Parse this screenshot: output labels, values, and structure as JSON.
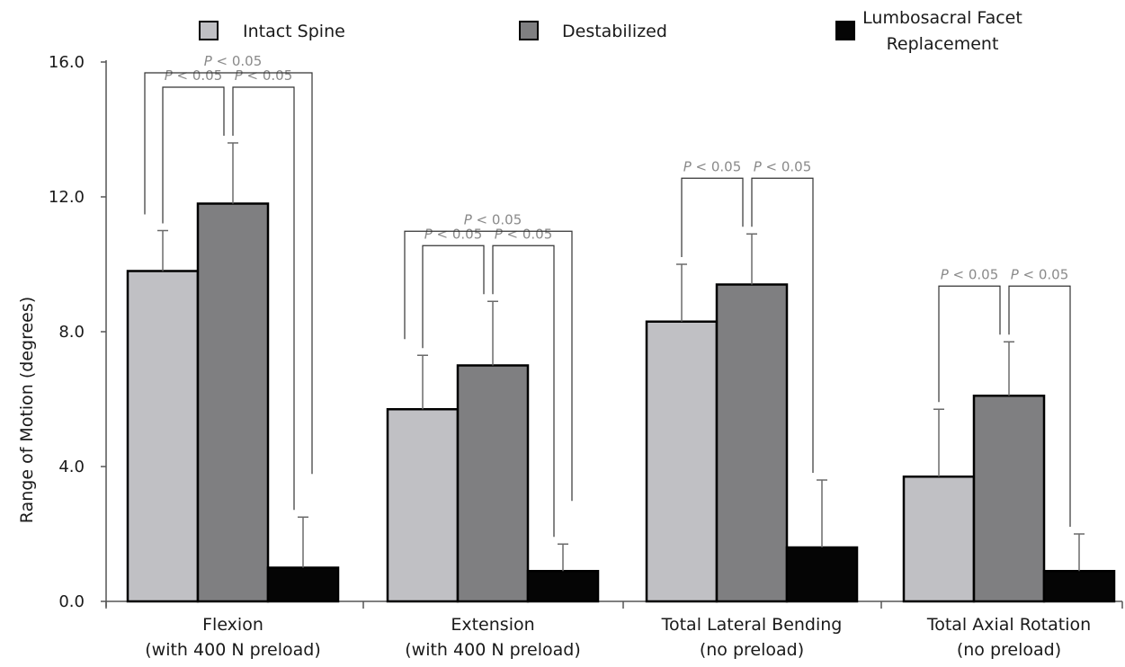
{
  "chart_data": {
    "type": "bar",
    "title": "",
    "ylabel": "Range of Motion (degrees)",
    "xlabel": "",
    "ylim": [
      0,
      16
    ],
    "yticks": [
      "0.0",
      "4.0",
      "8.0",
      "12.0",
      "16.0"
    ],
    "grid": false,
    "legend_position": "top",
    "categories": [
      {
        "line1": "Flexion",
        "line2": "(with 400 N preload)"
      },
      {
        "line1": "Extension",
        "line2": "(with 400 N preload)"
      },
      {
        "line1": "Total Lateral Bending",
        "line2": "(no preload)"
      },
      {
        "line1": "Total Axial Rotation",
        "line2": "(no preload)"
      }
    ],
    "series": [
      {
        "name": "Intact Spine",
        "color": "#c0c0c4",
        "values": [
          9.8,
          5.7,
          8.3,
          3.7
        ],
        "errors": [
          1.2,
          1.6,
          1.7,
          2.0
        ]
      },
      {
        "name": "Destabilized",
        "color": "#7f7f81",
        "values": [
          11.8,
          7.0,
          9.4,
          6.1
        ],
        "errors": [
          1.8,
          1.9,
          1.5,
          1.6
        ]
      },
      {
        "name": "Lumbosacral Facet Replacement",
        "legend_lines": [
          "Lumbosacral Facet",
          "Replacement"
        ],
        "color": "#050505",
        "values": [
          1.0,
          0.9,
          1.6,
          0.9
        ],
        "errors": [
          1.5,
          0.8,
          2.0,
          1.1
        ]
      }
    ],
    "significance": [
      {
        "category": 0,
        "from": 0,
        "to": 1,
        "label": "P < 0.05"
      },
      {
        "category": 0,
        "from": 1,
        "to": 2,
        "label": "P < 0.05"
      },
      {
        "category": 0,
        "from": 0,
        "to": 2,
        "label": "P < 0.05"
      },
      {
        "category": 1,
        "from": 0,
        "to": 1,
        "label": "P < 0.05"
      },
      {
        "category": 1,
        "from": 1,
        "to": 2,
        "label": "P < 0.05"
      },
      {
        "category": 1,
        "from": 0,
        "to": 2,
        "label": "P < 0.05"
      },
      {
        "category": 2,
        "from": 0,
        "to": 1,
        "label": "P < 0.05"
      },
      {
        "category": 2,
        "from": 1,
        "to": 2,
        "label": "P < 0.05"
      },
      {
        "category": 3,
        "from": 0,
        "to": 1,
        "label": "P < 0.05"
      },
      {
        "category": 3,
        "from": 1,
        "to": 2,
        "label": "P < 0.05"
      }
    ]
  }
}
